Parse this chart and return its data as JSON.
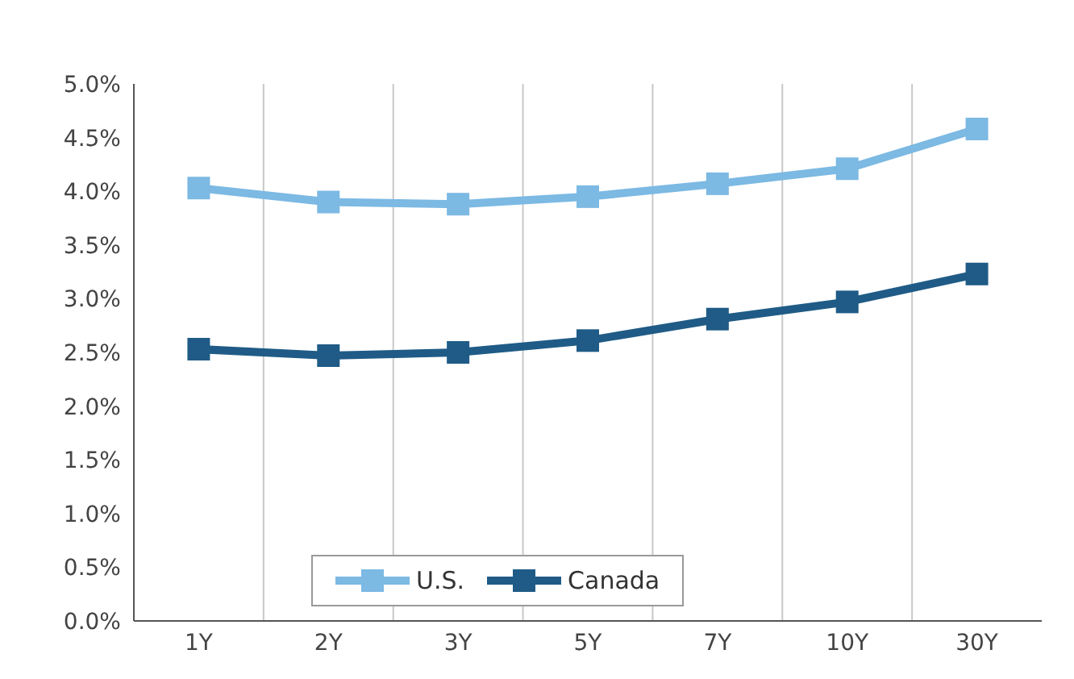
{
  "chart_data": {
    "type": "line",
    "categories": [
      "1Y",
      "2Y",
      "3Y",
      "5Y",
      "7Y",
      "10Y",
      "30Y"
    ],
    "series": [
      {
        "name": "U.S.",
        "color": "#7cb9e3",
        "values": [
          4.03,
          3.9,
          3.88,
          3.95,
          4.07,
          4.21,
          4.58
        ]
      },
      {
        "name": "Canada",
        "color": "#1f5b86",
        "values": [
          2.53,
          2.47,
          2.5,
          2.61,
          2.81,
          2.97,
          3.23
        ]
      }
    ],
    "ylim": [
      0,
      5
    ],
    "yticks": [
      {
        "value": 0,
        "label": "0.0%"
      },
      {
        "value": 0.5,
        "label": "0.5%"
      },
      {
        "value": 1,
        "label": "1.0%"
      },
      {
        "value": 1.5,
        "label": "1.5%"
      },
      {
        "value": 2,
        "label": "2.0%"
      },
      {
        "value": 2.5,
        "label": "2.5%"
      },
      {
        "value": 3,
        "label": "3.0%"
      },
      {
        "value": 3.5,
        "label": "3.5%"
      },
      {
        "value": 4,
        "label": "4.0%"
      },
      {
        "value": 4.5,
        "label": "4.5%"
      },
      {
        "value": 5,
        "label": "5.0%"
      }
    ],
    "grid": "x",
    "legend": "bottom",
    "marker": "square",
    "line_style": "solid"
  }
}
